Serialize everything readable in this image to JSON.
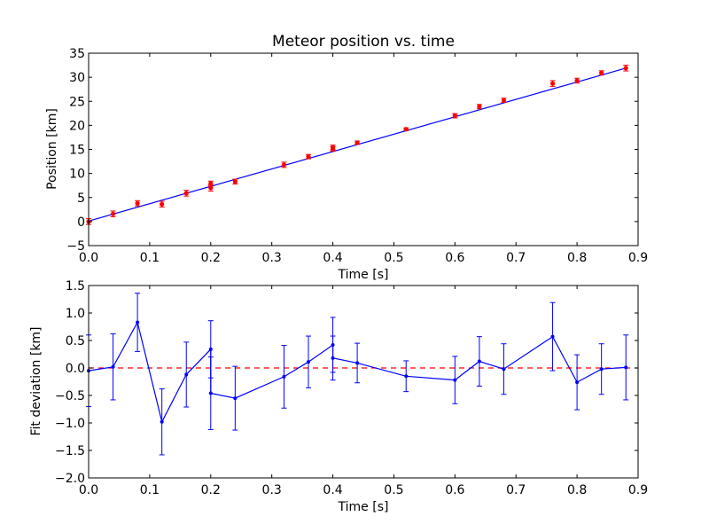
{
  "colors": {
    "fit": "#0000ff",
    "points": "#ff0000",
    "axes": "#000000",
    "background": "#ffffff"
  },
  "chart_data": [
    {
      "type": "scatter",
      "title": "Meteor position vs. time",
      "xlabel": "Time [s]",
      "ylabel": "Position [km]",
      "xlim": [
        0.0,
        0.9
      ],
      "ylim": [
        -5,
        35
      ],
      "xticks": [
        "0.0",
        "0.1",
        "0.2",
        "0.3",
        "0.4",
        "0.5",
        "0.6",
        "0.7",
        "0.8",
        "0.9"
      ],
      "yticks": [
        "−5",
        "0",
        "5",
        "10",
        "15",
        "20",
        "25",
        "30",
        "35"
      ],
      "grid": false,
      "fit_line": {
        "x": [
          0.0,
          0.88
        ],
        "y": [
          0.1,
          31.9
        ]
      },
      "series": [
        {
          "x": [
            0.0,
            0.04,
            0.08,
            0.12,
            0.16,
            0.2,
            0.2,
            0.24,
            0.32,
            0.36,
            0.4,
            0.4,
            0.44,
            0.52,
            0.6,
            0.64,
            0.68,
            0.76,
            0.8,
            0.84,
            0.88
          ],
          "y": [
            0.0,
            1.6,
            3.8,
            3.6,
            5.9,
            7.0,
            7.9,
            8.3,
            11.8,
            13.5,
            15.1,
            15.4,
            16.4,
            19.2,
            22.0,
            23.9,
            25.2,
            28.7,
            29.3,
            30.9,
            31.9
          ],
          "yerr": [
            0.6,
            0.6,
            0.55,
            0.6,
            0.6,
            0.65,
            0.5,
            0.5,
            0.55,
            0.45,
            0.45,
            0.5,
            0.35,
            0.28,
            0.45,
            0.45,
            0.45,
            0.6,
            0.5,
            0.45,
            0.6
          ]
        }
      ]
    },
    {
      "type": "line",
      "title": "",
      "xlabel": "Time [s]",
      "ylabel": "Fit deviation [km]",
      "xlim": [
        0.0,
        0.9
      ],
      "ylim": [
        -2.0,
        1.5
      ],
      "xticks": [
        "0.0",
        "0.1",
        "0.2",
        "0.3",
        "0.4",
        "0.5",
        "0.6",
        "0.7",
        "0.8",
        "0.9"
      ],
      "yticks": [
        "−2.0",
        "−1.5",
        "−1.0",
        "−0.5",
        "0.0",
        "0.5",
        "1.0",
        "1.5"
      ],
      "grid": false,
      "zero_line": 0.0,
      "series": [
        {
          "x": [
            0.0,
            0.04,
            0.08,
            0.12,
            0.16,
            0.2,
            0.2,
            0.24,
            0.32,
            0.36,
            0.4,
            0.4,
            0.44,
            0.52,
            0.6,
            0.64,
            0.68,
            0.76,
            0.8,
            0.84,
            0.88
          ],
          "y": [
            -0.05,
            0.02,
            0.83,
            -0.98,
            -0.12,
            0.34,
            -0.46,
            -0.55,
            -0.16,
            0.11,
            0.42,
            0.18,
            0.09,
            -0.15,
            -0.22,
            0.12,
            -0.02,
            0.57,
            -0.26,
            -0.02,
            0.01
          ],
          "yerr": [
            0.65,
            0.6,
            0.53,
            0.6,
            0.59,
            0.52,
            0.66,
            0.58,
            0.57,
            0.47,
            0.5,
            0.4,
            0.36,
            0.28,
            0.43,
            0.45,
            0.46,
            0.62,
            0.5,
            0.46,
            0.59
          ]
        }
      ]
    }
  ]
}
